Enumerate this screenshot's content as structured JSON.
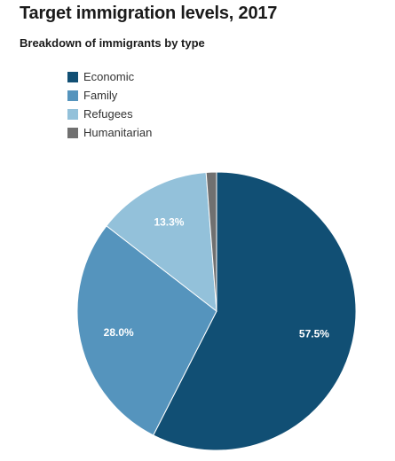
{
  "chart_data": {
    "type": "pie",
    "title": "Target immigration levels, 2017",
    "subtitle": "Breakdown of immigrants by type",
    "legend_position": "top-left",
    "categories": [
      "Economic",
      "Family",
      "Refugees",
      "Humanitarian"
    ],
    "values": [
      57.5,
      28.0,
      13.3,
      1.2
    ],
    "value_labels": [
      "57.5%",
      "28.0%",
      "13.3%",
      ""
    ],
    "colors": [
      "#114f74",
      "#5594bd",
      "#93c1da",
      "#707070"
    ]
  }
}
